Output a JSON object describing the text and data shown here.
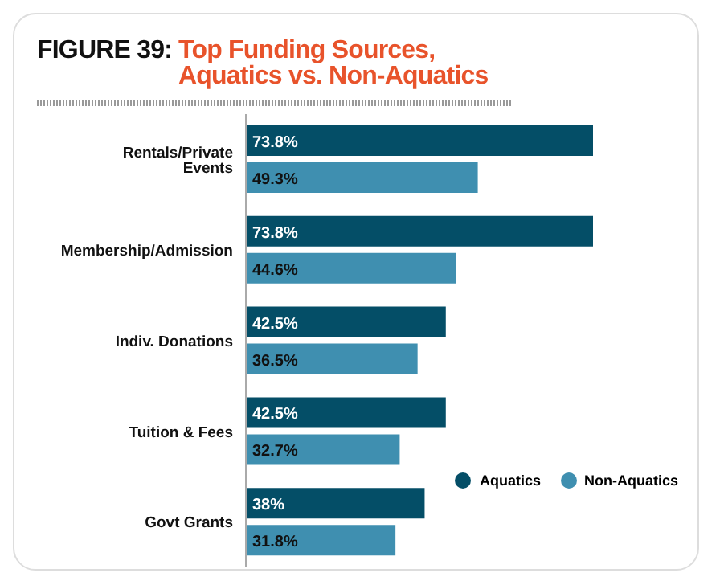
{
  "chart_data": {
    "type": "bar",
    "orientation": "horizontal",
    "title": "FIGURE 39: Top Funding Sources, Aquatics vs. Non-Aquatics",
    "categories": [
      "Rentals/Private Events",
      "Membership/Admission",
      "Indiv. Donations",
      "Tuition & Fees",
      "Govt Grants"
    ],
    "series": [
      {
        "name": "Aquatics",
        "color": "#044e67",
        "values": [
          73.8,
          73.8,
          42.5,
          42.5,
          38
        ],
        "value_labels": [
          "73.8%",
          "73.8%",
          "42.5%",
          "42.5%",
          "38%"
        ]
      },
      {
        "name": "Non-Aquatics",
        "color": "#3f8fb0",
        "values": [
          49.3,
          44.6,
          36.5,
          32.7,
          31.8
        ],
        "value_labels": [
          "49.3%",
          "44.6%",
          "36.5%",
          "32.7%",
          "31.8%"
        ]
      }
    ],
    "tick_labels": "y",
    "legend": "bottom right",
    "grid": false
  }
}
